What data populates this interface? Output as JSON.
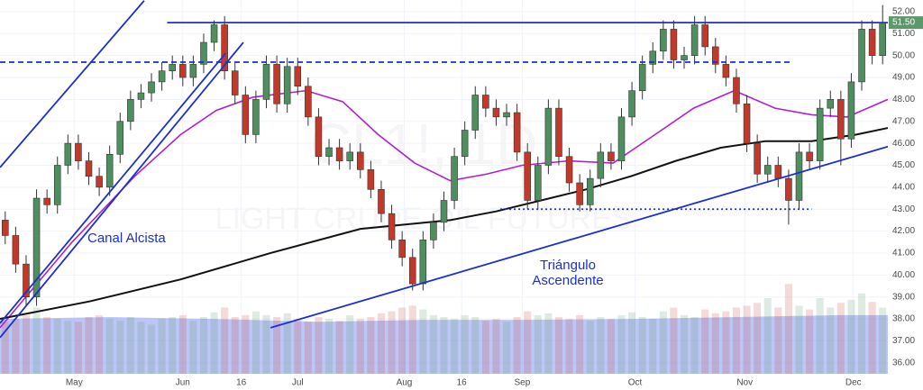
{
  "chart_data": {
    "type": "candlestick",
    "watermark": [
      "CL1!, 1D",
      "LIGHT CRUDE OIL FUTURES"
    ],
    "annotations": [
      "Canal Alcista",
      "Triángulo",
      "Ascendente"
    ],
    "x": [
      0,
      1,
      2,
      3,
      4,
      5,
      6,
      7,
      8,
      9,
      10,
      11,
      12,
      13,
      14,
      15,
      16,
      17,
      18,
      19,
      20,
      21,
      22,
      23,
      24,
      25,
      26,
      27,
      28,
      29,
      30,
      31,
      32,
      33,
      34,
      35,
      36,
      37,
      38,
      39,
      40,
      41,
      42,
      43,
      44,
      45,
      46,
      47,
      48,
      49,
      50,
      51,
      52,
      53,
      54,
      55,
      56,
      57,
      58,
      59,
      60,
      61,
      62,
      63,
      64,
      65,
      66,
      67,
      68,
      69,
      70,
      71,
      72,
      73,
      74,
      75,
      76,
      77,
      78,
      79,
      80,
      81,
      82,
      83,
      84
    ],
    "open": [
      42.5,
      41.8,
      40.5,
      39.0,
      43.5,
      43.2,
      45.0,
      46.0,
      45.2,
      44.5,
      44.0,
      45.5,
      47.0,
      48.0,
      48.3,
      48.8,
      49.3,
      49.6,
      49.0,
      49.6,
      50.6,
      51.4,
      49.3,
      48.2,
      46.4,
      48.0,
      49.6,
      47.8,
      49.5,
      48.6,
      47.2,
      45.4,
      45.8,
      45.2,
      45.6,
      44.8,
      43.9,
      42.8,
      41.6,
      40.8,
      39.6,
      41.6,
      42.4,
      43.4,
      45.4,
      46.6,
      48.2,
      47.6,
      47.2,
      47.4,
      45.6,
      43.4,
      45.0,
      47.6,
      45.4,
      44.2,
      43.2,
      44.4,
      45.6,
      45.2,
      47.2,
      48.4,
      49.6,
      50.2,
      51.2,
      49.8,
      50.0,
      51.4,
      50.4,
      49.6,
      49.0,
      47.8,
      46.0,
      44.6,
      45.0,
      44.4,
      43.4,
      45.6,
      45.2,
      47.6,
      48.0,
      46.2,
      48.8,
      51.2,
      50.0
    ],
    "high": [
      42.9,
      42.2,
      40.9,
      43.9,
      43.9,
      45.4,
      46.4,
      46.4,
      45.6,
      44.9,
      45.9,
      47.4,
      48.4,
      48.7,
      49.2,
      49.7,
      50.0,
      50.0,
      50.0,
      51.0,
      51.6,
      51.8,
      49.7,
      48.6,
      48.4,
      50.0,
      50.0,
      49.9,
      49.9,
      49.0,
      47.6,
      46.2,
      46.2,
      46.0,
      46.0,
      45.2,
      44.3,
      43.2,
      42.0,
      41.2,
      42.0,
      42.8,
      43.8,
      45.8,
      47.0,
      48.6,
      48.6,
      48.0,
      47.8,
      47.8,
      46.0,
      45.4,
      48.0,
      48.0,
      45.8,
      44.6,
      44.8,
      46.0,
      46.0,
      47.6,
      48.8,
      50.0,
      50.6,
      51.6,
      51.6,
      50.4,
      51.8,
      51.8,
      50.8,
      50.0,
      49.4,
      48.2,
      46.4,
      45.4,
      45.4,
      44.8,
      46.0,
      46.0,
      48.0,
      48.4,
      48.4,
      49.2,
      51.6,
      51.6,
      52.3
    ],
    "low": [
      41.4,
      40.1,
      38.6,
      38.6,
      42.8,
      42.8,
      44.6,
      44.8,
      44.1,
      43.6,
      43.6,
      45.1,
      46.6,
      47.6,
      47.9,
      48.4,
      48.9,
      48.6,
      48.6,
      49.2,
      50.2,
      48.9,
      47.8,
      46.0,
      46.0,
      47.6,
      47.4,
      47.4,
      48.2,
      46.8,
      45.0,
      45.0,
      44.8,
      44.8,
      44.4,
      43.5,
      42.4,
      41.2,
      40.4,
      39.3,
      39.3,
      41.2,
      42.0,
      43.0,
      45.0,
      46.2,
      47.2,
      46.8,
      46.8,
      45.2,
      43.0,
      43.0,
      44.6,
      45.0,
      43.8,
      42.9,
      42.9,
      44.0,
      44.8,
      44.8,
      46.8,
      48.0,
      49.2,
      49.8,
      49.4,
      49.4,
      49.6,
      50.0,
      49.2,
      48.6,
      47.4,
      45.6,
      44.2,
      44.2,
      44.0,
      42.3,
      43.0,
      44.8,
      44.8,
      47.2,
      45.0,
      45.8,
      48.4,
      49.6,
      49.6
    ],
    "close": [
      41.8,
      40.5,
      39.0,
      43.5,
      43.2,
      45.0,
      46.0,
      45.2,
      44.5,
      44.0,
      45.5,
      47.0,
      48.0,
      48.3,
      48.8,
      49.3,
      49.6,
      49.0,
      49.6,
      50.6,
      51.4,
      49.3,
      48.2,
      46.4,
      48.0,
      49.6,
      47.8,
      49.5,
      48.6,
      47.2,
      45.4,
      45.8,
      45.2,
      45.6,
      44.8,
      43.9,
      42.8,
      41.6,
      40.8,
      39.6,
      41.6,
      42.4,
      43.4,
      45.4,
      46.6,
      48.2,
      47.6,
      47.2,
      47.4,
      45.6,
      43.4,
      45.0,
      47.6,
      45.4,
      44.2,
      43.2,
      44.4,
      45.6,
      45.2,
      47.2,
      48.4,
      49.6,
      50.2,
      51.2,
      49.8,
      50.0,
      51.4,
      50.4,
      49.6,
      49.0,
      47.8,
      46.0,
      44.6,
      45.0,
      44.4,
      43.4,
      45.6,
      45.2,
      47.6,
      48.0,
      46.2,
      48.8,
      51.2,
      50.0,
      51.5
    ],
    "volume": [
      55,
      58,
      62,
      70,
      60,
      58,
      56,
      55,
      60,
      62,
      58,
      56,
      60,
      55,
      52,
      58,
      60,
      62,
      56,
      60,
      65,
      70,
      60,
      62,
      66,
      62,
      60,
      64,
      58,
      55,
      60,
      58,
      56,
      62,
      58,
      60,
      64,
      66,
      70,
      72,
      68,
      62,
      60,
      58,
      62,
      60,
      56,
      58,
      55,
      60,
      66,
      62,
      64,
      60,
      58,
      62,
      56,
      60,
      58,
      62,
      65,
      60,
      58,
      66,
      70,
      62,
      60,
      68,
      64,
      66,
      70,
      72,
      75,
      80,
      70,
      95,
      72,
      68,
      80,
      70,
      75,
      78,
      85,
      76,
      70
    ],
    "vlim": [
      0,
      100
    ],
    "volume_ma": {
      "x": [
        -0.5,
        10,
        20,
        30,
        40,
        50,
        60,
        70,
        80,
        84.5
      ],
      "values": [
        58,
        60,
        58,
        55,
        57,
        57,
        58,
        60,
        62,
        62
      ],
      "color": "#7b8ff0"
    },
    "ma50": {
      "color": "#b01fd6",
      "x": [
        -0.5,
        6.4,
        12.4,
        16.8,
        20.2,
        23.7,
        28.8,
        32.3,
        35.7,
        39.2,
        42.6,
        46.1,
        49.5,
        53.9,
        58.2,
        61.6,
        65.9,
        69.8,
        73.7,
        77.2,
        80.6,
        84.5
      ],
      "values": [
        37.6,
        41.5,
        44.5,
        46.4,
        47.5,
        48.1,
        48.4,
        47.9,
        46.4,
        45.1,
        44.3,
        44.6,
        45.0,
        45.2,
        45.1,
        46.2,
        47.6,
        48.4,
        47.6,
        47.3,
        47.2,
        48.0
      ]
    },
    "ma200": {
      "color": "#111111",
      "x": [
        -0.5,
        8.1,
        16.8,
        25.4,
        34.0,
        38.3,
        42.6,
        47.0,
        51.3,
        55.6,
        59.9,
        64.2,
        68.5,
        72.8,
        77.2,
        81.5,
        84.5
      ],
      "values": [
        38.0,
        38.8,
        39.8,
        41.0,
        42.1,
        42.3,
        42.5,
        42.9,
        43.4,
        43.9,
        44.5,
        45.2,
        45.8,
        46.1,
        46.1,
        46.4,
        46.7
      ]
    },
    "trend_lines": [
      {
        "x": [
          15.5,
          84.5
        ],
        "y": [
          51.5,
          51.5
        ],
        "style": "solid"
      },
      {
        "x": [
          -0.5,
          75.3
        ],
        "y": [
          49.7,
          49.7
        ],
        "style": "dashed"
      },
      {
        "x": [
          47.4,
          77.2
        ],
        "y": [
          43.0,
          43.0
        ],
        "style": "dotted"
      },
      {
        "x": [
          25.4,
          84.5
        ],
        "y": [
          37.6,
          45.85
        ],
        "style": "solid"
      },
      {
        "x": [
          -0.5,
          13.3
        ],
        "y": [
          44.9,
          52.5
        ],
        "style": "solid"
      },
      {
        "x": [
          -0.5,
          22.8
        ],
        "y": [
          37.15,
          50.6
        ],
        "style": "solid"
      },
      {
        "x": [
          -0.5,
          21.1
        ],
        "y": [
          37.8,
          50.1
        ],
        "style": "solid"
      }
    ],
    "line_color": "#1c2fd0",
    "up_color": "#4f8f5f",
    "down_color": "#c0392b",
    "last_price": {
      "value": 51.5,
      "label": "51.50"
    },
    "xlim": [
      -0.5,
      84.5
    ],
    "ylim": [
      35.5,
      52.53
    ],
    "xticks": [
      {
        "value": 6.6,
        "label": "May"
      },
      {
        "value": 17,
        "label": "Jun"
      },
      {
        "value": 22.6,
        "label": "16"
      },
      {
        "value": 28,
        "label": "Jul"
      },
      {
        "value": 38.2,
        "label": "Aug"
      },
      {
        "value": 43.7,
        "label": "16"
      },
      {
        "value": 49.5,
        "label": "Sep"
      },
      {
        "value": 60.3,
        "label": "Oct"
      },
      {
        "value": 70.8,
        "label": "Nov"
      },
      {
        "value": 81.2,
        "label": "Dec"
      }
    ],
    "yticks": [
      {
        "value": 36,
        "label": "36.00"
      },
      {
        "value": 37,
        "label": "37.00"
      },
      {
        "value": 38,
        "label": "38.00"
      },
      {
        "value": 39,
        "label": "39.00"
      },
      {
        "value": 40,
        "label": "40.00"
      },
      {
        "value": 41,
        "label": "41.00"
      },
      {
        "value": 42,
        "label": "42.00"
      },
      {
        "value": 43,
        "label": "43.00"
      },
      {
        "value": 44,
        "label": "44.00"
      },
      {
        "value": 45,
        "label": "45.00"
      },
      {
        "value": 46,
        "label": "46.00"
      },
      {
        "value": 47,
        "label": "47.00"
      },
      {
        "value": 48,
        "label": "48.00"
      },
      {
        "value": 49,
        "label": "49.00"
      },
      {
        "value": 50,
        "label": "50.00"
      },
      {
        "value": 51,
        "label": "51.00"
      },
      {
        "value": 52,
        "label": "52.00"
      }
    ],
    "grid": true
  }
}
